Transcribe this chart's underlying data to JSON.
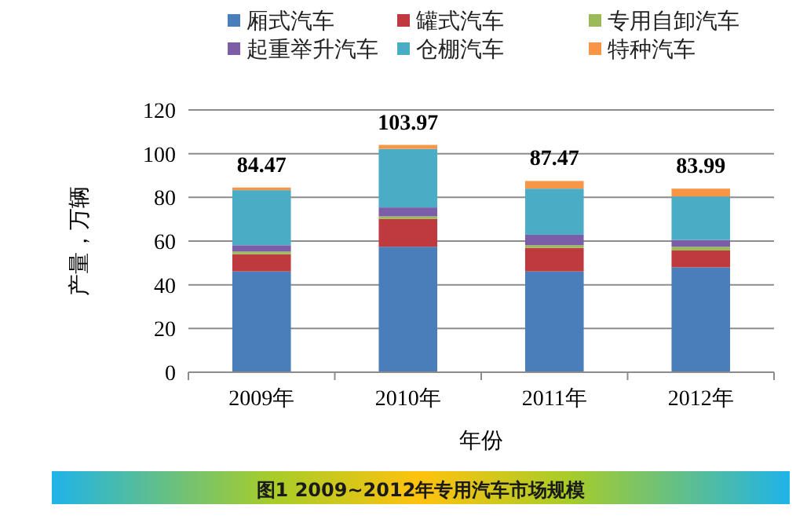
{
  "chart_data": {
    "type": "bar",
    "stacked": true,
    "categories": [
      "2009年",
      "2010年",
      "2011年",
      "2012年"
    ],
    "series": [
      {
        "name": "厢式汽车",
        "color": "#4a7ebb",
        "values": [
          46.1,
          57.4,
          46.1,
          48.0
        ]
      },
      {
        "name": "罐式汽车",
        "color": "#be3a3e",
        "values": [
          7.9,
          12.7,
          10.8,
          7.7
        ]
      },
      {
        "name": "专用自卸汽车",
        "color": "#9bbb59",
        "values": [
          1.2,
          1.2,
          1.2,
          1.7
        ]
      },
      {
        "name": "起重举升汽车",
        "color": "#7b5ea7",
        "values": [
          2.9,
          4.1,
          4.8,
          3.1
        ]
      },
      {
        "name": "仓棚汽车",
        "color": "#4bacc6",
        "values": [
          25.2,
          26.8,
          21.1,
          19.9
        ]
      },
      {
        "name": "特种汽车",
        "color": "#f79646",
        "values": [
          1.2,
          1.8,
          3.5,
          3.6
        ]
      }
    ],
    "totals": [
      "84.47",
      "103.97",
      "87.47",
      "83.99"
    ],
    "ylim": [
      0,
      120
    ],
    "yticks": [
      0,
      20,
      40,
      60,
      80,
      100,
      120
    ],
    "grid": "y",
    "legend": "top",
    "xlabel": "年份",
    "ylabel": "产量，万辆",
    "annotations": [
      "图1 2009~2012年专用汽车市场规模"
    ]
  }
}
